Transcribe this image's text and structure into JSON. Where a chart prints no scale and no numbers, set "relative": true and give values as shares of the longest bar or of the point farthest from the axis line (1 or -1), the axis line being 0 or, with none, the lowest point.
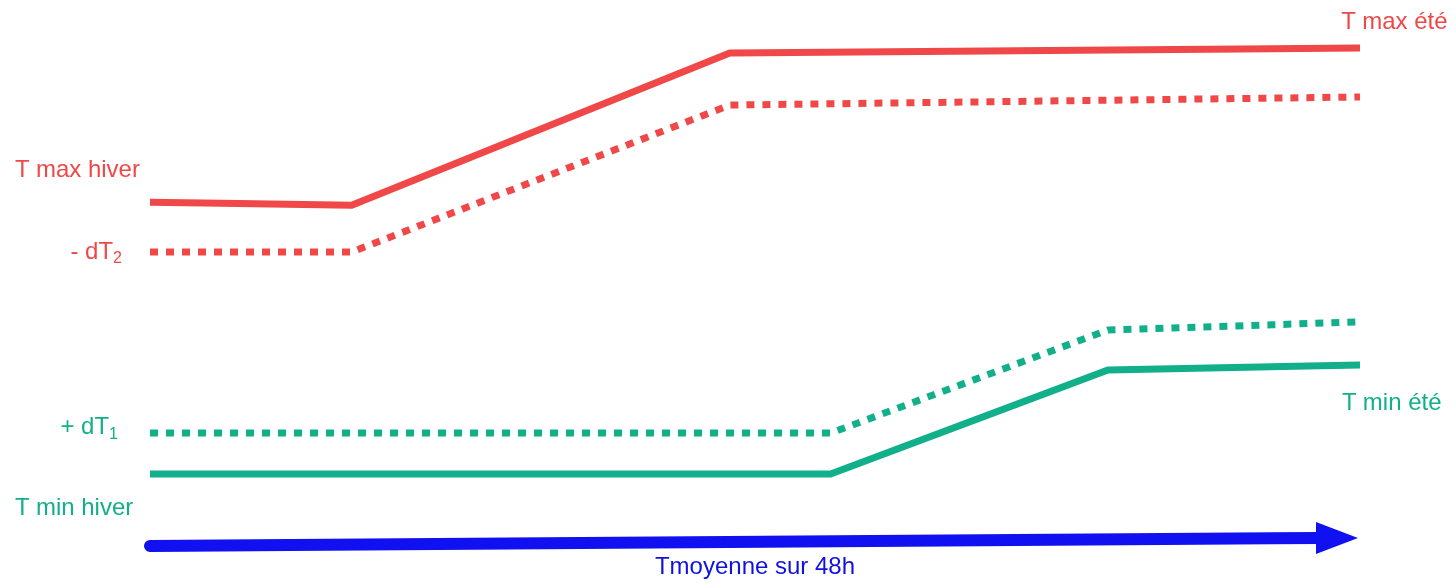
{
  "chart_data": {
    "type": "line",
    "relative": true,
    "xlabel": "Tmoyenne sur 48h",
    "categories": [
      null,
      null,
      null,
      null,
      null,
      null,
      null,
      null,
      null,
      null,
      null,
      null,
      null,
      null,
      null,
      null,
      null,
      null,
      null,
      null,
      null,
      null,
      null,
      null,
      null,
      null,
      null,
      null,
      null,
      null,
      null,
      null,
      null,
      null,
      null,
      null,
      null,
      null,
      null,
      null,
      null,
      null,
      null,
      null,
      null,
      null,
      null,
      null,
      null
    ],
    "series": [
      {
        "color": "#f04848",
        "line_style": "solid",
        "values": [
          0.638,
          null,
          null,
          null,
          null,
          null,
          null,
          null,
          0.631,
          null,
          null,
          null,
          null,
          null,
          null,
          null,
          null,
          null,
          null,
          null,
          null,
          null,
          null,
          0.988,
          null,
          null,
          null,
          null,
          null,
          null,
          null,
          null,
          null,
          null,
          null,
          null,
          null,
          null,
          null,
          null,
          null,
          null,
          null,
          null,
          null,
          null,
          null,
          null,
          1
        ]
      },
      {
        "color": "#f04848",
        "line_style": "dotted",
        "values": [
          0.521,
          null,
          null,
          null,
          null,
          null,
          null,
          null,
          0.521,
          null,
          null,
          null,
          null,
          null,
          null,
          null,
          null,
          null,
          null,
          null,
          null,
          null,
          null,
          0.866,
          null,
          null,
          null,
          null,
          null,
          null,
          null,
          null,
          null,
          null,
          null,
          null,
          null,
          null,
          null,
          null,
          null,
          null,
          null,
          null,
          null,
          null,
          null,
          null,
          0.885
        ]
      },
      {
        "color": "#12b08a",
        "line_style": "dotted",
        "values": [
          0.096,
          null,
          null,
          null,
          null,
          null,
          null,
          null,
          null,
          null,
          null,
          null,
          null,
          null,
          null,
          null,
          null,
          null,
          null,
          null,
          null,
          null,
          null,
          null,
          null,
          null,
          null,
          0.096,
          null,
          null,
          null,
          null,
          null,
          null,
          null,
          null,
          null,
          null,
          0.338,
          null,
          null,
          null,
          null,
          null,
          null,
          null,
          null,
          null,
          0.357
        ]
      },
      {
        "color": "#12b08a",
        "line_style": "solid",
        "values": [
          0,
          null,
          null,
          null,
          null,
          null,
          null,
          null,
          null,
          null,
          null,
          null,
          null,
          null,
          null,
          null,
          null,
          null,
          null,
          null,
          null,
          null,
          null,
          null,
          null,
          null,
          null,
          0,
          null,
          null,
          null,
          null,
          null,
          null,
          null,
          null,
          null,
          null,
          0.244,
          null,
          null,
          null,
          null,
          null,
          null,
          null,
          null,
          null,
          0.256
        ]
      }
    ],
    "annotations": [
      "T max hiver",
      "- dT$_{2}$",
      "+ dT$_{1}$",
      "T min hiver",
      "T max été",
      "T min été"
    ]
  }
}
